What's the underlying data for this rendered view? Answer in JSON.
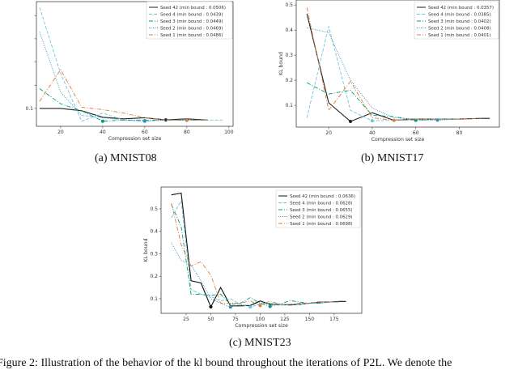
{
  "figure_caption": "Figure 2: Illustration of the behavior of the kl bound throughout the iterations of P2L. We denote the",
  "chart_data": [
    {
      "type": "line",
      "caption": "(a) MNIST08",
      "xlabel": "Compression set size",
      "ylabel": "",
      "xlim": [
        8.5,
        102
      ],
      "ylim": [
        0.023,
        0.56
      ],
      "xticks": [
        20,
        40,
        60,
        80,
        100
      ],
      "yticks": [
        0.1,
        0.2,
        0.3,
        0.4,
        0.5
      ],
      "xtick_labels": [
        "20",
        "40",
        "60",
        "80",
        "100"
      ],
      "ytick_labels": [
        "0.1",
        "",
        "",
        "",
        ""
      ],
      "grid": false,
      "legend_position": "top-right",
      "series": [
        {
          "name": "Seed 42 (min bound : 0.0506)",
          "color": "#222222",
          "style": "solid",
          "x": [
            10,
            20,
            30,
            40,
            50,
            60,
            70,
            80,
            90
          ],
          "y": [
            0.1,
            0.1,
            0.09,
            0.062,
            0.055,
            0.06,
            0.0506,
            0.055,
            0.05
          ],
          "min_x": 70
        },
        {
          "name": "Seed 4 (min bound : 0.0439)",
          "color": "#6cc6e0",
          "style": "dashed",
          "x": [
            10,
            20,
            30,
            40,
            50,
            60,
            70,
            80,
            90,
            97
          ],
          "y": [
            0.535,
            0.25,
            0.045,
            0.08,
            0.05,
            0.0439,
            0.05,
            0.05,
            0.05,
            0.05
          ],
          "min_x": 60
        },
        {
          "name": "Seed 3 (min bound : 0.0449)",
          "color": "#009e73",
          "style": "dashdot",
          "x": [
            10,
            20,
            30,
            40,
            50,
            60,
            70,
            80,
            90
          ],
          "y": [
            0.185,
            0.12,
            0.09,
            0.0449,
            0.05,
            0.05,
            0.05,
            0.05,
            0.05
          ],
          "min_x": 40
        },
        {
          "name": "Seed 2 (min bound : 0.0469)",
          "color": "#2c8fb8",
          "style": "dotted",
          "x": [
            10,
            20,
            30,
            40,
            50,
            60,
            70,
            80,
            90
          ],
          "y": [
            0.43,
            0.17,
            0.07,
            0.06,
            0.05,
            0.0469,
            0.05,
            0.05,
            0.05
          ],
          "min_x": 60
        },
        {
          "name": "Seed 1 (min bound : 0.0486)",
          "color": "#e07b39",
          "style": "dashdot",
          "x": [
            10,
            20,
            30,
            40,
            50,
            60,
            70,
            80,
            90
          ],
          "y": [
            0.13,
            0.267,
            0.105,
            0.095,
            0.08,
            0.06,
            0.05,
            0.0486,
            0.05
          ],
          "min_x": 80
        }
      ]
    },
    {
      "type": "line",
      "caption": "(b) MNIST17",
      "xlabel": "Compression set size",
      "ylabel": "KL bound",
      "xlim": [
        5.1,
        98.4
      ],
      "ylim": [
        0.013,
        0.52
      ],
      "xticks": [
        20,
        40,
        60,
        80
      ],
      "yticks": [
        0.1,
        0.2,
        0.3,
        0.4,
        0.5
      ],
      "xtick_labels": [
        "20",
        "40",
        "60",
        "80"
      ],
      "ytick_labels": [
        "0.1",
        "0.2",
        "0.3",
        "0.4",
        "0.5"
      ],
      "grid": false,
      "legend_position": "top-right",
      "series": [
        {
          "name": "Seed 42 (min bound : 0.0357)",
          "color": "#222222",
          "style": "solid",
          "x": [
            10,
            20,
            30,
            40,
            50,
            60,
            70,
            80,
            90,
            94
          ],
          "y": [
            0.465,
            0.11,
            0.0357,
            0.07,
            0.04,
            0.045,
            0.045,
            0.045,
            0.048,
            0.048
          ],
          "min_x": 30
        },
        {
          "name": "Seed 4 (min bound : 0.0385)",
          "color": "#6cc6e0",
          "style": "dashed",
          "x": [
            10,
            20,
            30,
            40,
            50,
            60,
            70,
            80
          ],
          "y": [
            0.05,
            0.415,
            0.08,
            0.0385,
            0.04,
            0.04,
            0.042,
            0.045
          ],
          "min_x": 40
        },
        {
          "name": "Seed 3 (min bound : 0.0402)",
          "color": "#009e73",
          "style": "dashdot",
          "x": [
            10,
            20,
            30,
            40,
            50,
            60,
            70,
            80
          ],
          "y": [
            0.19,
            0.145,
            0.16,
            0.06,
            0.055,
            0.0402,
            0.045,
            0.045
          ],
          "min_x": 60
        },
        {
          "name": "Seed 2 (min bound : 0.0408)",
          "color": "#2c8fb8",
          "style": "dotted",
          "x": [
            10,
            20,
            30,
            40,
            50,
            60,
            70,
            80
          ],
          "y": [
            0.41,
            0.39,
            0.2,
            0.09,
            0.05,
            0.045,
            0.0408,
            0.045
          ],
          "min_x": 70
        },
        {
          "name": "Seed 1 (min bound : 0.0401)",
          "color": "#e07b39",
          "style": "dashdot",
          "x": [
            10,
            20,
            30,
            40,
            50,
            60,
            70,
            80,
            90
          ],
          "y": [
            0.49,
            0.08,
            0.195,
            0.05,
            0.0401,
            0.045,
            0.045,
            0.045,
            0.048
          ],
          "min_x": 50
        }
      ]
    },
    {
      "type": "line",
      "caption": "(c) MNIST23",
      "xlabel": "Compression set size",
      "ylabel": "KL bound",
      "xlim": [
        -0.4,
        203
      ],
      "ylim": [
        0.035,
        0.597
      ],
      "xticks": [
        25,
        50,
        75,
        100,
        125,
        150,
        175
      ],
      "yticks": [
        0.1,
        0.2,
        0.3,
        0.4,
        0.5
      ],
      "xtick_labels": [
        "25",
        "50",
        "75",
        "100",
        "125",
        "150",
        "175"
      ],
      "ytick_labels": [
        "0.1",
        "0.2",
        "0.3",
        "0.4",
        "0.5"
      ],
      "grid": false,
      "legend_position": "top-right",
      "series": [
        {
          "name": "Seed 42 (min bound : 0.0636)",
          "color": "#111111",
          "style": "solid",
          "x": [
            10,
            20,
            30,
            40,
            50,
            60,
            70,
            80,
            90,
            100,
            110,
            120,
            130,
            140,
            150,
            160,
            170,
            180,
            187
          ],
          "y": [
            0.562,
            0.57,
            0.18,
            0.17,
            0.0636,
            0.15,
            0.068,
            0.068,
            0.07,
            0.09,
            0.075,
            0.075,
            0.072,
            0.075,
            0.08,
            0.085,
            0.085,
            0.088,
            0.088
          ],
          "min_x": 50
        },
        {
          "name": "Seed 4 (min bound : 0.0628)",
          "color": "#6cc6e0",
          "style": "dashed",
          "x": [
            10,
            20,
            30,
            40,
            50,
            60,
            70,
            80,
            90,
            100,
            110,
            120,
            130,
            140,
            150,
            160,
            170,
            180
          ],
          "y": [
            0.46,
            0.535,
            0.14,
            0.12,
            0.11,
            0.09,
            0.1,
            0.075,
            0.0628,
            0.075,
            0.08,
            0.07,
            0.075,
            0.075,
            0.08,
            0.08,
            0.085,
            0.085
          ],
          "min_x": 90
        },
        {
          "name": "Seed 3 (min bound : 0.0655)",
          "color": "#009e73",
          "style": "dashdot",
          "x": [
            10,
            20,
            30,
            40,
            50,
            60,
            70,
            80,
            90,
            100,
            110,
            120,
            130,
            140,
            150,
            160,
            170,
            180
          ],
          "y": [
            0.52,
            0.42,
            0.12,
            0.12,
            0.115,
            0.12,
            0.075,
            0.08,
            0.105,
            0.08,
            0.0655,
            0.075,
            0.092,
            0.085,
            0.08,
            0.08,
            0.085,
            0.085
          ],
          "min_x": 110
        },
        {
          "name": "Seed 2 (min bound : 0.0629)",
          "color": "#2c8fb8",
          "style": "dotted",
          "x": [
            10,
            20,
            30,
            40,
            50,
            60,
            70,
            80,
            90,
            100,
            110,
            120,
            130,
            140,
            150,
            160,
            170,
            180
          ],
          "y": [
            0.35,
            0.27,
            0.25,
            0.18,
            0.1,
            0.08,
            0.0629,
            0.075,
            0.07,
            0.08,
            0.08,
            0.075,
            0.075,
            0.08,
            0.08,
            0.08,
            0.085,
            0.085
          ],
          "min_x": 70
        },
        {
          "name": "Seed 1 (min bound : 0.0698)",
          "color": "#e07b39",
          "style": "dashdot",
          "x": [
            10,
            20,
            30,
            40,
            50,
            60,
            70,
            80,
            90,
            100,
            110,
            120,
            130,
            140,
            150,
            160,
            170,
            180
          ],
          "y": [
            0.525,
            0.34,
            0.245,
            0.265,
            0.205,
            0.08,
            0.08,
            0.08,
            0.09,
            0.0698,
            0.09,
            0.075,
            0.075,
            0.08,
            0.08,
            0.085,
            0.085,
            0.085
          ],
          "min_x": 100
        }
      ]
    }
  ]
}
